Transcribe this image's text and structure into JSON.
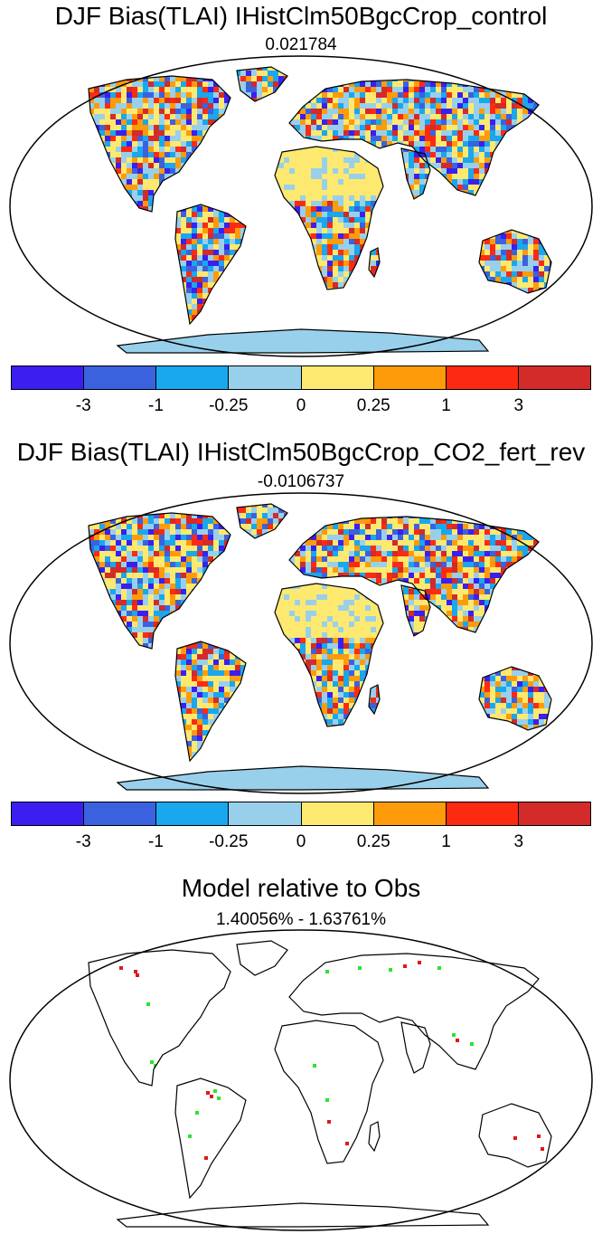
{
  "panels": [
    {
      "title": "DJF Bias(TLAI) IHistClm50BgcCrop_control",
      "subtitle": "0.021784"
    },
    {
      "title": "DJF Bias(TLAI) IHistClm50BgcCrop_CO2_fert_rev",
      "subtitle": "-0.0106737"
    },
    {
      "title": "Model relative to Obs",
      "subtitle": "1.40056% - 1.63761%"
    }
  ],
  "colorbar": {
    "colors": [
      "#3a1ff0",
      "#3a62df",
      "#19a7ee",
      "#98d0ec",
      "#fde96f",
      "#fe9b0a",
      "#fd2a12",
      "#d32a2a"
    ],
    "labels": [
      "-3",
      "-1",
      "-0.25",
      "0",
      "0.25",
      "1",
      "3"
    ]
  },
  "diff_colors": {
    "better": "#2ee22e",
    "worse": "#e01818"
  }
}
